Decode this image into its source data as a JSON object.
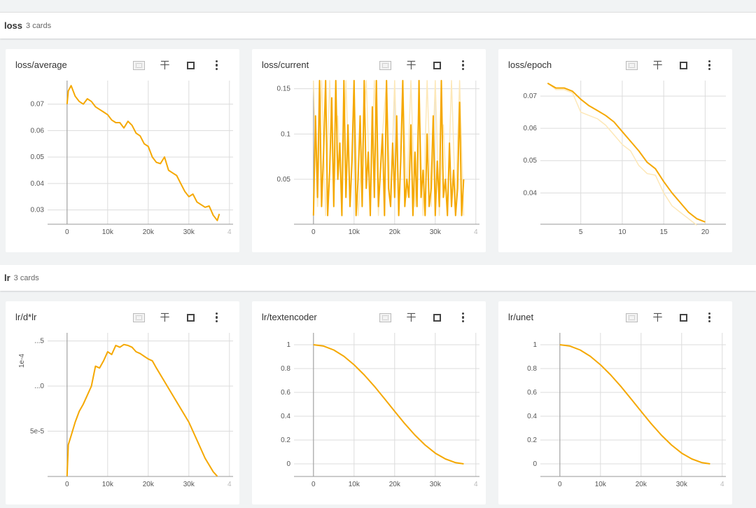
{
  "colors": {
    "line": "#f5a800",
    "raw": "#fde8b8",
    "grid": "#dcdcdc",
    "axis": "#999"
  },
  "sections": [
    {
      "name": "loss",
      "count": "3 cards"
    },
    {
      "name": "lr",
      "count": "3 cards"
    }
  ],
  "cards": [
    {
      "title": "loss/average",
      "chart": 0
    },
    {
      "title": "loss/current",
      "chart": 1
    },
    {
      "title": "loss/epoch",
      "chart": 2
    },
    {
      "title": "lr/d*lr",
      "chart": 3
    },
    {
      "title": "lr/textencoder",
      "chart": 4
    },
    {
      "title": "lr/unet",
      "chart": 5
    }
  ],
  "toolbar_icons": [
    "fit-to-data-icon",
    "pin-icon",
    "fullscreen-icon",
    "more-vert-icon"
  ],
  "chart_data": [
    {
      "type": "line",
      "title": "loss/average",
      "xlim": [
        -4800,
        40900
      ],
      "ylim": [
        0.0246,
        0.0789
      ],
      "x_ticks": [
        {
          "v": 0,
          "l": "0"
        },
        {
          "v": 10000,
          "l": "10k"
        },
        {
          "v": 20000,
          "l": "20k"
        },
        {
          "v": 30000,
          "l": "30k"
        },
        {
          "v": 40000,
          "l": "4"
        }
      ],
      "y_ticks": [
        {
          "v": 0.03,
          "l": "0.03"
        },
        {
          "v": 0.04,
          "l": "0.04"
        },
        {
          "v": 0.05,
          "l": "0.05"
        },
        {
          "v": 0.06,
          "l": "0.06"
        },
        {
          "v": 0.07,
          "l": "0.07"
        }
      ],
      "series": [
        {
          "name": "smoothed",
          "style": "line",
          "x": [
            0,
            300,
            1000,
            2000,
            3000,
            4000,
            5000,
            6000,
            7000,
            8000,
            9000,
            10000,
            11000,
            12000,
            13000,
            14000,
            15000,
            16000,
            17000,
            18000,
            19000,
            20000,
            21000,
            22000,
            23000,
            24000,
            25000,
            26000,
            27000,
            28000,
            29000,
            30000,
            31000,
            32000,
            33000,
            34000,
            35000,
            36000,
            37000,
            37500
          ],
          "y": [
            0.07,
            0.075,
            0.077,
            0.073,
            0.071,
            0.07,
            0.072,
            0.071,
            0.069,
            0.068,
            0.067,
            0.066,
            0.064,
            0.063,
            0.063,
            0.061,
            0.0635,
            0.062,
            0.059,
            0.058,
            0.055,
            0.054,
            0.05,
            0.048,
            0.0475,
            0.05,
            0.045,
            0.044,
            0.043,
            0.04,
            0.037,
            0.035,
            0.036,
            0.033,
            0.032,
            0.031,
            0.0315,
            0.028,
            0.026,
            0.0285
          ]
        }
      ]
    },
    {
      "type": "line",
      "title": "loss/current",
      "xlim": [
        -4800,
        40900
      ],
      "ylim": [
        0.0004,
        0.159
      ],
      "x_ticks": [
        {
          "v": 0,
          "l": "0"
        },
        {
          "v": 10000,
          "l": "10k"
        },
        {
          "v": 20000,
          "l": "20k"
        },
        {
          "v": 30000,
          "l": "30k"
        },
        {
          "v": 40000,
          "l": "4"
        }
      ],
      "y_ticks": [
        {
          "v": 0.05,
          "l": "0.05"
        },
        {
          "v": 0.1,
          "l": "0.1"
        },
        {
          "v": 0.15,
          "l": "0.15"
        }
      ],
      "series": [
        {
          "name": "raw",
          "style": "raw",
          "x_start": 0,
          "x_step": 1000,
          "y": [
            0.159,
            0.02,
            0.159,
            0.01,
            0.159,
            0.03,
            0.12,
            0.01,
            0.159,
            0.02,
            0.159,
            0.01,
            0.08,
            0.159,
            0.02,
            0.159,
            0.01,
            0.1,
            0.159,
            0.02,
            0.159,
            0.01,
            0.159,
            0.03,
            0.159,
            0.02,
            0.14,
            0.01,
            0.159,
            0.02,
            0.159,
            0.01,
            0.11,
            0.01,
            0.159,
            0.02,
            0.159,
            0.01
          ]
        },
        {
          "name": "smoothed",
          "style": "line",
          "x_start": 0,
          "x_step": 500,
          "y": [
            0.01,
            0.12,
            0.03,
            0.159,
            0.02,
            0.08,
            0.159,
            0.01,
            0.06,
            0.14,
            0.02,
            0.159,
            0.05,
            0.09,
            0.01,
            0.159,
            0.03,
            0.11,
            0.02,
            0.07,
            0.159,
            0.01,
            0.05,
            0.12,
            0.02,
            0.159,
            0.04,
            0.08,
            0.01,
            0.13,
            0.03,
            0.159,
            0.02,
            0.06,
            0.1,
            0.01,
            0.159,
            0.04,
            0.02,
            0.09,
            0.03,
            0.12,
            0.01,
            0.07,
            0.159,
            0.02,
            0.05,
            0.03,
            0.11,
            0.01,
            0.08,
            0.02,
            0.159,
            0.03,
            0.06,
            0.01,
            0.1,
            0.02,
            0.04,
            0.12,
            0.01,
            0.07,
            0.02,
            0.159,
            0.03,
            0.05,
            0.01,
            0.09,
            0.02,
            0.06,
            0.01,
            0.04,
            0.135,
            0.01,
            0.05
          ]
        }
      ]
    },
    {
      "type": "line",
      "title": "loss/epoch",
      "xlim": [
        0.13,
        22.5
      ],
      "ylim": [
        0.0303,
        0.0748
      ],
      "x_ticks": [
        {
          "v": 5,
          "l": "5"
        },
        {
          "v": 10,
          "l": "10"
        },
        {
          "v": 15,
          "l": "15"
        },
        {
          "v": 20,
          "l": "20"
        }
      ],
      "y_ticks": [
        {
          "v": 0.04,
          "l": "0.04"
        },
        {
          "v": 0.05,
          "l": "0.05"
        },
        {
          "v": 0.06,
          "l": "0.06"
        },
        {
          "v": 0.07,
          "l": "0.07"
        }
      ],
      "series": [
        {
          "name": "raw",
          "style": "raw",
          "x": [
            1,
            2,
            3,
            4,
            5,
            6,
            7,
            8,
            9,
            10,
            11,
            12,
            13,
            14,
            15,
            16,
            17,
            18,
            19
          ],
          "y": [
            0.074,
            0.072,
            0.072,
            0.071,
            0.065,
            0.064,
            0.063,
            0.061,
            0.058,
            0.055,
            0.053,
            0.0485,
            0.046,
            0.0455,
            0.04,
            0.036,
            0.034,
            0.032,
            0.03
          ]
        },
        {
          "name": "smoothed",
          "style": "line",
          "x": [
            1,
            2,
            3,
            4,
            5,
            6,
            7,
            8,
            9,
            10,
            11,
            12,
            13,
            14,
            15,
            16,
            17,
            18,
            19,
            20
          ],
          "y": [
            0.074,
            0.0725,
            0.0725,
            0.0715,
            0.069,
            0.067,
            0.0655,
            0.064,
            0.062,
            0.059,
            0.056,
            0.053,
            0.0495,
            0.0475,
            0.0435,
            0.04,
            0.037,
            0.034,
            0.032,
            0.031
          ]
        }
      ]
    },
    {
      "type": "line",
      "title": "lr/d*lr",
      "xlim": [
        -4800,
        40900
      ],
      "ylim": [
        -2e-07,
        0.000159
      ],
      "ylabel": "1e-4",
      "x_ticks": [
        {
          "v": 0,
          "l": "0"
        },
        {
          "v": 10000,
          "l": "10k"
        },
        {
          "v": 20000,
          "l": "20k"
        },
        {
          "v": 30000,
          "l": "30k"
        },
        {
          "v": 40000,
          "l": "4"
        }
      ],
      "y_ticks": [
        {
          "v": 5e-05,
          "l": "5e-5"
        },
        {
          "v": 0.0001,
          "l": "...0"
        },
        {
          "v": 0.00015,
          "l": "...5"
        }
      ],
      "series": [
        {
          "name": "smoothed",
          "style": "line",
          "x": [
            0,
            300,
            1000,
            2000,
            3000,
            4000,
            5000,
            6000,
            7000,
            8000,
            9000,
            10000,
            11000,
            12000,
            13000,
            14000,
            15000,
            16000,
            17000,
            18000,
            19000,
            20000,
            21000,
            22000,
            24000,
            26000,
            28000,
            30000,
            32000,
            34000,
            36000,
            37000
          ],
          "y": [
            0,
            3.5e-05,
            4.5e-05,
            6e-05,
            7.2e-05,
            8e-05,
            9e-05,
            0.0001,
            0.000122,
            0.00012,
            0.000128,
            0.000138,
            0.000135,
            0.000145,
            0.000143,
            0.000146,
            0.000145,
            0.000143,
            0.000138,
            0.000136,
            0.000133,
            0.00013,
            0.000128,
            0.00012,
            0.000105,
            9e-05,
            7.5e-05,
            6e-05,
            4e-05,
            2e-05,
            5e-06,
            0
          ]
        }
      ]
    },
    {
      "type": "line",
      "title": "lr/textencoder",
      "xlim": [
        -4800,
        40900
      ],
      "ylim": [
        -0.106,
        1.1
      ],
      "cosine_end": 37000,
      "x_ticks": [
        {
          "v": 0,
          "l": "0"
        },
        {
          "v": 10000,
          "l": "10k"
        },
        {
          "v": 20000,
          "l": "20k"
        },
        {
          "v": 30000,
          "l": "30k"
        },
        {
          "v": 40000,
          "l": "4"
        }
      ],
      "y_ticks": [
        {
          "v": 0,
          "l": "0"
        },
        {
          "v": 0.2,
          "l": "0.2"
        },
        {
          "v": 0.4,
          "l": "0.4"
        },
        {
          "v": 0.6,
          "l": "0.6"
        },
        {
          "v": 0.8,
          "l": "0.8"
        },
        {
          "v": 1,
          "l": "1"
        }
      ],
      "series": [
        {
          "name": "smoothed",
          "style": "line",
          "x": [
            0,
            2500,
            5000,
            7500,
            10000,
            12500,
            15000,
            17500,
            20000,
            22500,
            25000,
            27500,
            30000,
            32500,
            35000,
            37000
          ],
          "y": [
            1,
            0.989,
            0.956,
            0.903,
            0.832,
            0.747,
            0.651,
            0.547,
            0.441,
            0.337,
            0.241,
            0.158,
            0.09,
            0.041,
            0.01,
            0
          ]
        }
      ]
    },
    {
      "type": "line",
      "title": "lr/unet",
      "xlim": [
        -4800,
        40900
      ],
      "ylim": [
        -0.106,
        1.1
      ],
      "x_ticks": [
        {
          "v": 0,
          "l": "0"
        },
        {
          "v": 10000,
          "l": "10k"
        },
        {
          "v": 20000,
          "l": "20k"
        },
        {
          "v": 30000,
          "l": "30k"
        },
        {
          "v": 40000,
          "l": "4"
        }
      ],
      "y_ticks": [
        {
          "v": 0,
          "l": "0"
        },
        {
          "v": 0.2,
          "l": "0.2"
        },
        {
          "v": 0.4,
          "l": "0.4"
        },
        {
          "v": 0.6,
          "l": "0.6"
        },
        {
          "v": 0.8,
          "l": "0.8"
        },
        {
          "v": 1,
          "l": "1"
        }
      ],
      "series": [
        {
          "name": "smoothed",
          "style": "line",
          "x": [
            0,
            2500,
            5000,
            7500,
            10000,
            12500,
            15000,
            17500,
            20000,
            22500,
            25000,
            27500,
            30000,
            32500,
            35000,
            37000
          ],
          "y": [
            1,
            0.989,
            0.956,
            0.903,
            0.832,
            0.747,
            0.651,
            0.547,
            0.441,
            0.337,
            0.241,
            0.158,
            0.09,
            0.041,
            0.01,
            0
          ]
        }
      ]
    }
  ]
}
